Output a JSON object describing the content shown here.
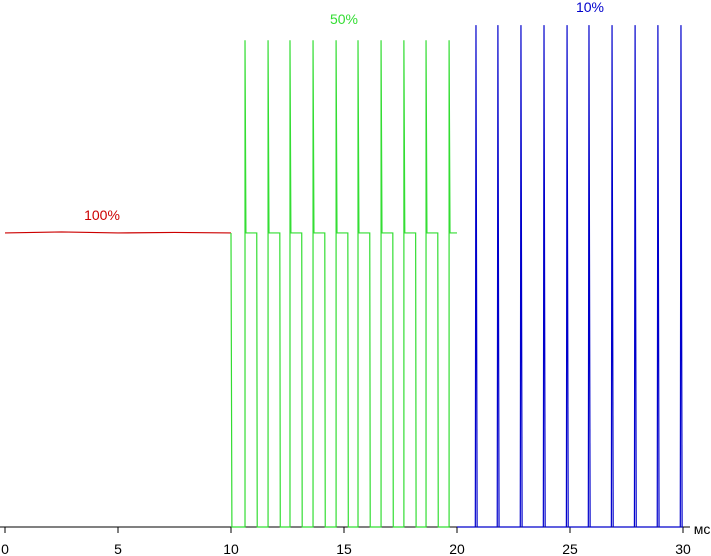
{
  "chart_data": {
    "type": "line",
    "xlabel": "мс",
    "xlim": [
      0,
      30
    ],
    "xticks": [
      0,
      5,
      10,
      15,
      20,
      25,
      30
    ],
    "ylim": [
      0,
      100
    ],
    "series": [
      {
        "name": "100%",
        "color": "#cc0000",
        "x": [
          0,
          2.5,
          5,
          7.5,
          10
        ],
        "values": [
          58,
          58.2,
          58,
          58.1,
          58
        ]
      },
      {
        "name": "50%",
        "color": "#33dd33",
        "x": [
          10.0,
          10.04,
          10.62,
          10.62,
          10.66,
          11.14,
          11.16,
          11.64,
          11.64,
          11.68,
          12.16,
          12.18,
          12.61,
          12.61,
          12.65,
          13.13,
          13.15,
          13.63,
          13.63,
          13.67,
          14.15,
          14.17,
          14.65,
          14.65,
          14.69,
          15.17,
          15.19,
          15.62,
          15.62,
          15.66,
          16.14,
          16.16,
          16.64,
          16.64,
          16.68,
          17.16,
          17.18,
          17.65,
          17.65,
          17.69,
          18.17,
          18.19,
          18.63,
          18.63,
          18.67,
          19.15,
          19.17,
          19.65,
          19.65,
          19.69,
          20.0
        ],
        "values": [
          58,
          0,
          0,
          96,
          58,
          58,
          0,
          0,
          96,
          58,
          58,
          0,
          0,
          96,
          58,
          58,
          0,
          0,
          96,
          58,
          58,
          0,
          0,
          96,
          58,
          58,
          0,
          0,
          96,
          58,
          58,
          0,
          0,
          96,
          58,
          58,
          0,
          0,
          96,
          58,
          58,
          0,
          0,
          96,
          58,
          58,
          0,
          0,
          96,
          58,
          58
        ]
      },
      {
        "name": "10%",
        "color": "#0000cc",
        "x": [
          20.0,
          20.81,
          20.84,
          20.89,
          21.78,
          21.81,
          21.86,
          22.8,
          22.83,
          22.88,
          23.82,
          23.85,
          23.9,
          24.84,
          24.87,
          24.92,
          25.81,
          25.84,
          25.89,
          26.83,
          26.86,
          26.91,
          27.85,
          27.88,
          27.93,
          28.86,
          28.89,
          28.94,
          29.88,
          29.91,
          29.96,
          30
        ],
        "values": [
          0,
          0,
          99,
          0,
          0,
          99,
          0,
          0,
          99,
          0,
          0,
          99,
          0,
          0,
          99,
          0,
          0,
          99,
          0,
          0,
          99,
          0,
          0,
          99,
          0,
          0,
          99,
          0,
          0,
          99,
          0,
          0
        ]
      }
    ]
  }
}
